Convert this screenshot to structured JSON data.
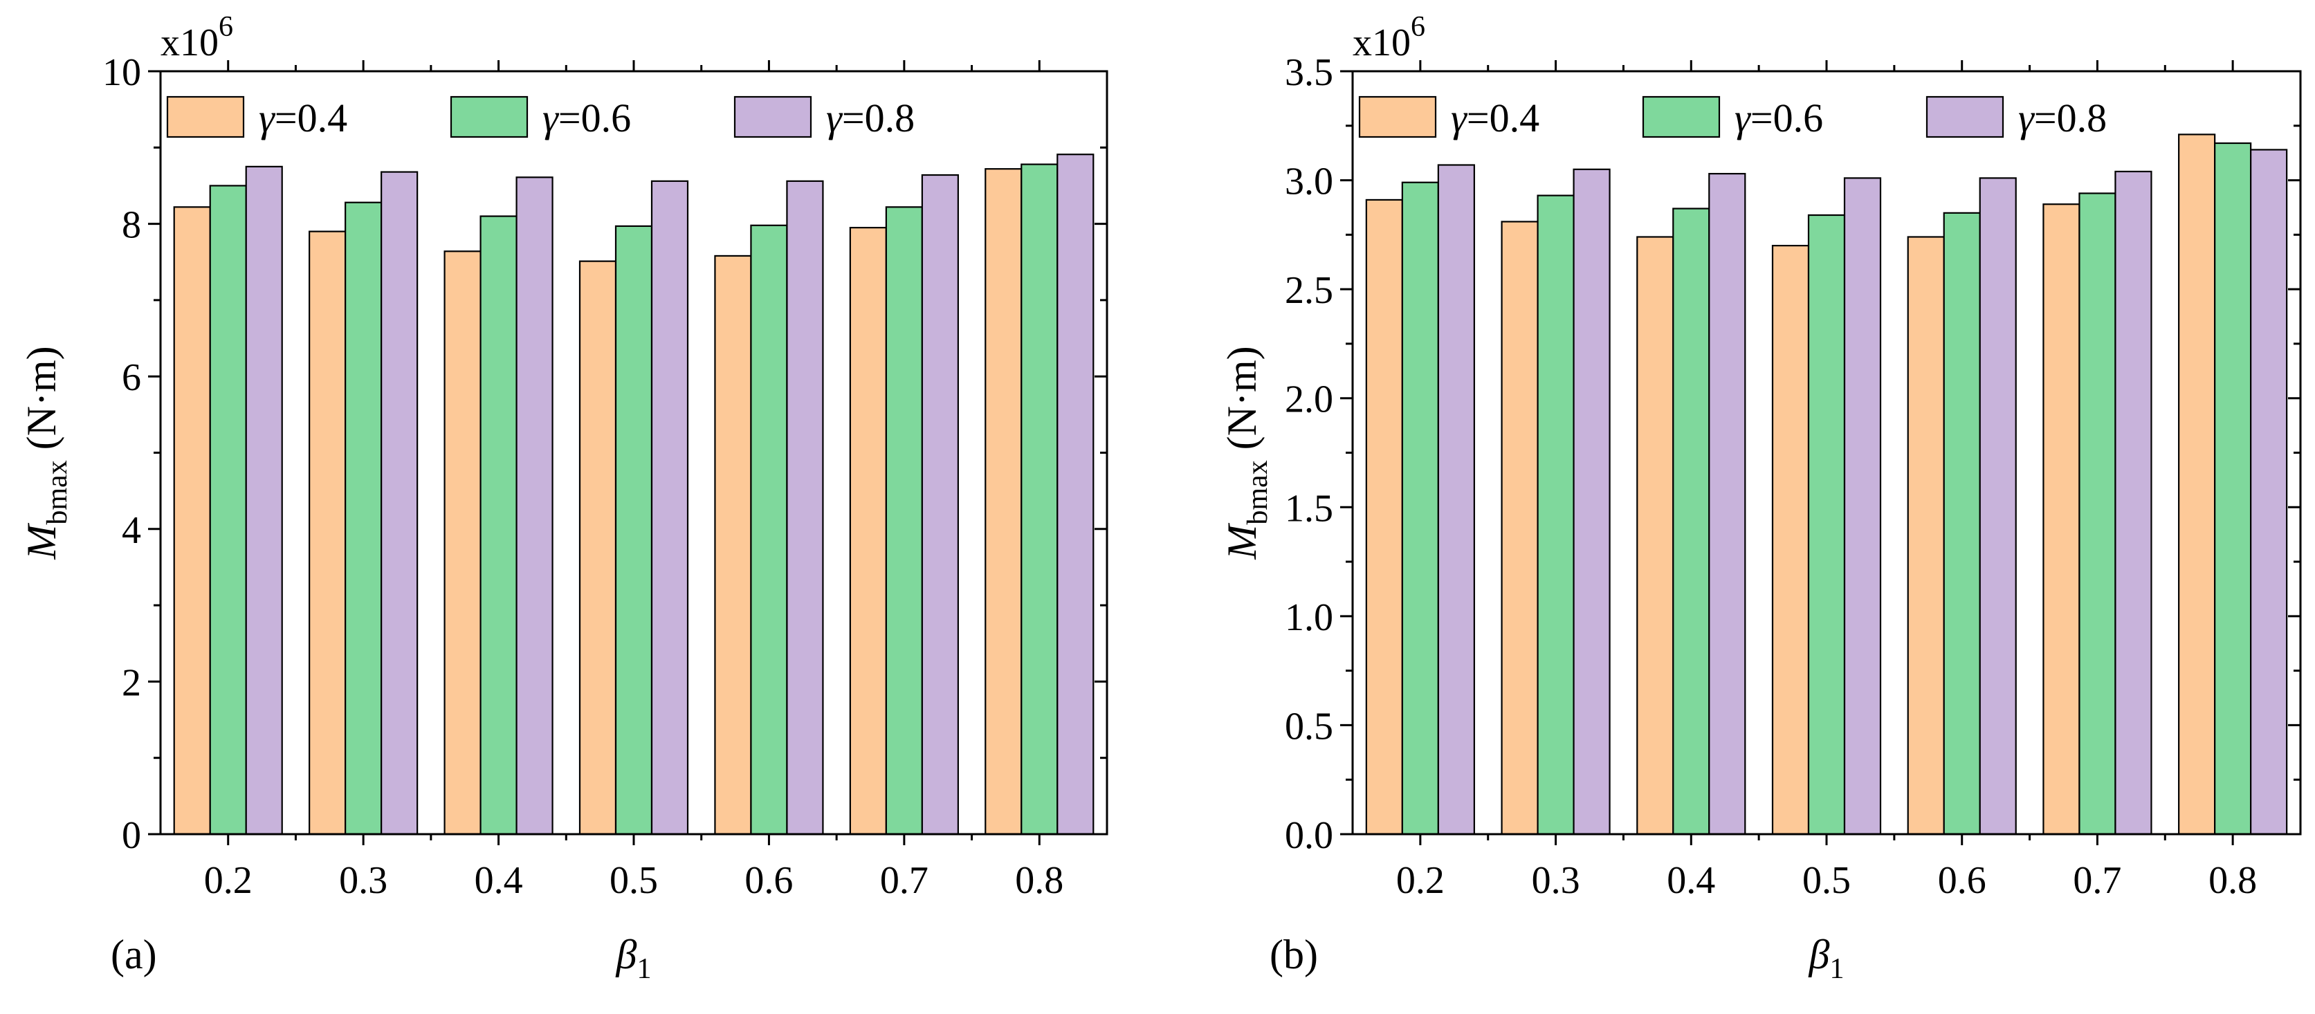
{
  "figure": {
    "colors": {
      "s04": "#FDC998",
      "s06": "#7FD89C",
      "s08": "#C8B3DB",
      "edge": "#000000"
    }
  },
  "chart_data": [
    {
      "type": "bar",
      "panel_label": "(a)",
      "categories": [
        "0.2",
        "0.3",
        "0.4",
        "0.5",
        "0.6",
        "0.7",
        "0.8"
      ],
      "series": [
        {
          "name": "γ=0.4",
          "greek": "γ",
          "value_label": "=0.4",
          "values": [
            8.22,
            7.9,
            7.64,
            7.51,
            7.58,
            7.95,
            8.72
          ]
        },
        {
          "name": "γ=0.6",
          "greek": "γ",
          "value_label": "=0.6",
          "values": [
            8.5,
            8.28,
            8.1,
            7.97,
            7.98,
            8.22,
            8.78
          ]
        },
        {
          "name": "γ=0.8",
          "greek": "γ",
          "value_label": "=0.8",
          "values": [
            8.75,
            8.68,
            8.61,
            8.56,
            8.56,
            8.64,
            8.91
          ]
        }
      ],
      "xlabel": {
        "symbol": "β",
        "subscript": "1"
      },
      "ylabel": {
        "symbol": "M",
        "subscript": "bmax",
        "unit": " (N·m)"
      },
      "y_multiplier": {
        "base": "x10",
        "exp": "6"
      },
      "ylim": [
        0,
        10
      ],
      "yticks": [
        0,
        2,
        4,
        6,
        8,
        10
      ],
      "ytick_labels": [
        "0",
        "2",
        "4",
        "6",
        "8",
        "10"
      ],
      "legend": "top-left, horizontal"
    },
    {
      "type": "bar",
      "panel_label": "(b)",
      "categories": [
        "0.2",
        "0.3",
        "0.4",
        "0.5",
        "0.6",
        "0.7",
        "0.8"
      ],
      "series": [
        {
          "name": "γ=0.4",
          "greek": "γ",
          "value_label": "=0.4",
          "values": [
            2.91,
            2.81,
            2.74,
            2.7,
            2.74,
            2.89,
            3.21
          ]
        },
        {
          "name": "γ=0.6",
          "greek": "γ",
          "value_label": "=0.6",
          "values": [
            2.99,
            2.93,
            2.87,
            2.84,
            2.85,
            2.94,
            3.17
          ]
        },
        {
          "name": "γ=0.8",
          "greek": "γ",
          "value_label": "=0.8",
          "values": [
            3.07,
            3.05,
            3.03,
            3.01,
            3.01,
            3.04,
            3.14
          ]
        }
      ],
      "xlabel": {
        "symbol": "β",
        "subscript": "1"
      },
      "ylabel": {
        "symbol": "M",
        "subscript": "bmax",
        "unit": " (N·m)"
      },
      "y_multiplier": {
        "base": "x10",
        "exp": "6"
      },
      "ylim": [
        0,
        3.5
      ],
      "yticks": [
        0,
        0.5,
        1.0,
        1.5,
        2.0,
        2.5,
        3.0,
        3.5
      ],
      "ytick_labels": [
        "0.0",
        "0.5",
        "1.0",
        "1.5",
        "2.0",
        "2.5",
        "3.0",
        "3.5"
      ],
      "legend": "top-left, horizontal"
    }
  ]
}
